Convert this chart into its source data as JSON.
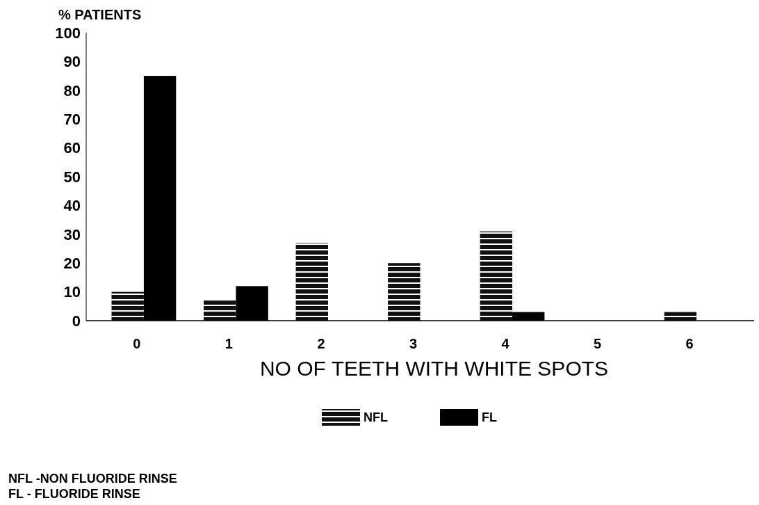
{
  "chart_data": {
    "type": "bar",
    "ylabel": "% PATIENTS",
    "xlabel": "NO OF TEETH WITH WHITE SPOTS",
    "categories": [
      "0",
      "1",
      "2",
      "3",
      "4",
      "5",
      "6"
    ],
    "series": [
      {
        "name": "NFL",
        "color": "#111111",
        "values": [
          10,
          7,
          27,
          20,
          31,
          0,
          3
        ]
      },
      {
        "name": "FL",
        "color": "#000000",
        "values": [
          85,
          12,
          0,
          0,
          3,
          0,
          0
        ]
      }
    ],
    "ylim": [
      0,
      100
    ],
    "yticks": [
      0,
      10,
      20,
      30,
      40,
      50,
      60,
      70,
      80,
      90,
      100
    ],
    "legend": "bottom",
    "annotations": [
      "NFL -NON FLUORIDE RINSE",
      "FL - FLUORIDE RINSE"
    ]
  }
}
